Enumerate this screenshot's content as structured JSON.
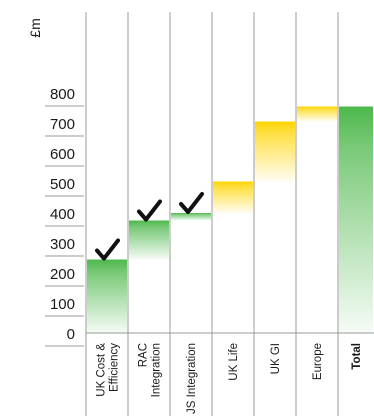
{
  "chart_data": {
    "type": "waterfall",
    "ylabel": "£m",
    "ylim": [
      0,
      900
    ],
    "yticks": [
      0,
      100,
      200,
      300,
      400,
      500,
      600,
      700,
      800
    ],
    "grid": "vertical column separators only",
    "categories": [
      {
        "label": [
          "UK Cost &",
          "Efficiency"
        ],
        "kind": "step",
        "start": 0,
        "end": 245,
        "checked": true,
        "color": "#4db84b"
      },
      {
        "label": [
          "RAC",
          "Integration"
        ],
        "kind": "step",
        "start": 245,
        "end": 375,
        "checked": true,
        "color": "#4db84b"
      },
      {
        "label": [
          "JS Integration"
        ],
        "kind": "step",
        "start": 375,
        "end": 400,
        "checked": true,
        "color": "#4db84b"
      },
      {
        "label": [
          "UK Life"
        ],
        "kind": "step",
        "start": 400,
        "end": 505,
        "checked": false,
        "color": "#ffd400"
      },
      {
        "label": [
          "UK GI"
        ],
        "kind": "step",
        "start": 505,
        "end": 705,
        "checked": false,
        "color": "#ffd400"
      },
      {
        "label": [
          "Europe"
        ],
        "kind": "step",
        "start": 705,
        "end": 755,
        "checked": false,
        "color": "#ffd400"
      },
      {
        "label": [
          "Total"
        ],
        "kind": "total",
        "start": 0,
        "end": 755,
        "checked": false,
        "color": "#4db84b",
        "bold": true
      }
    ]
  }
}
